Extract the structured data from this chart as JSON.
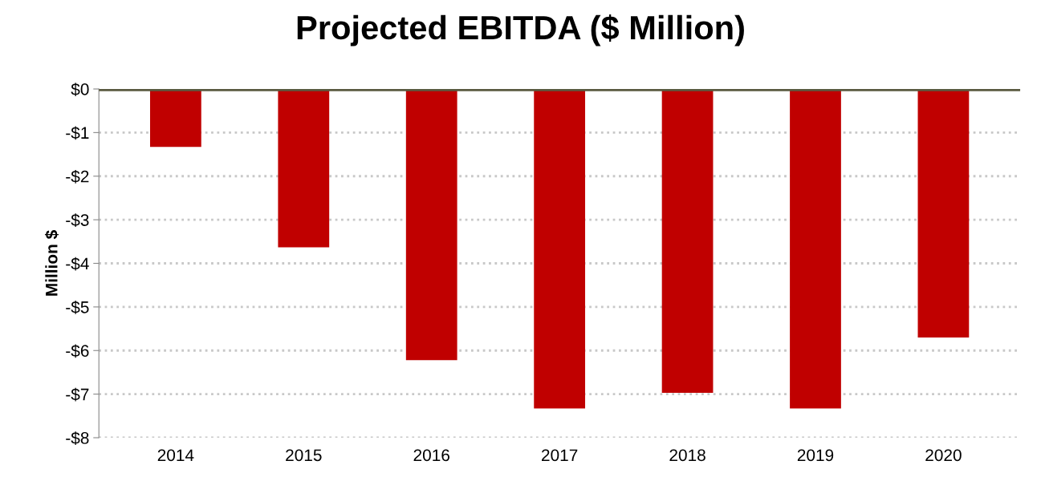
{
  "chart_data": {
    "type": "bar",
    "title": "Projected EBITDA ($ Million)",
    "ylabel": "Million $",
    "categories": [
      "2014",
      "2015",
      "2016",
      "2017",
      "2018",
      "2019",
      "2020"
    ],
    "values": [
      -1.33,
      -3.63,
      -6.22,
      -7.33,
      -6.97,
      -7.33,
      -5.7
    ],
    "color": "#c00000",
    "ylim": [
      -8,
      0
    ],
    "yticks": [
      {
        "value": 0,
        "label": "$0"
      },
      {
        "value": -1,
        "label": "-$1"
      },
      {
        "value": -2,
        "label": "-$2"
      },
      {
        "value": -3,
        "label": "-$3"
      },
      {
        "value": -4,
        "label": "-$4"
      },
      {
        "value": -5,
        "label": "-$5"
      },
      {
        "value": -6,
        "label": "-$6"
      },
      {
        "value": -7,
        "label": "-$7"
      },
      {
        "value": -8,
        "label": "-$8"
      }
    ],
    "grid": "y",
    "ref_lines": [
      {
        "axis": "y",
        "value": 0,
        "color": "#5a5a40",
        "line_style": "solid"
      }
    ]
  }
}
